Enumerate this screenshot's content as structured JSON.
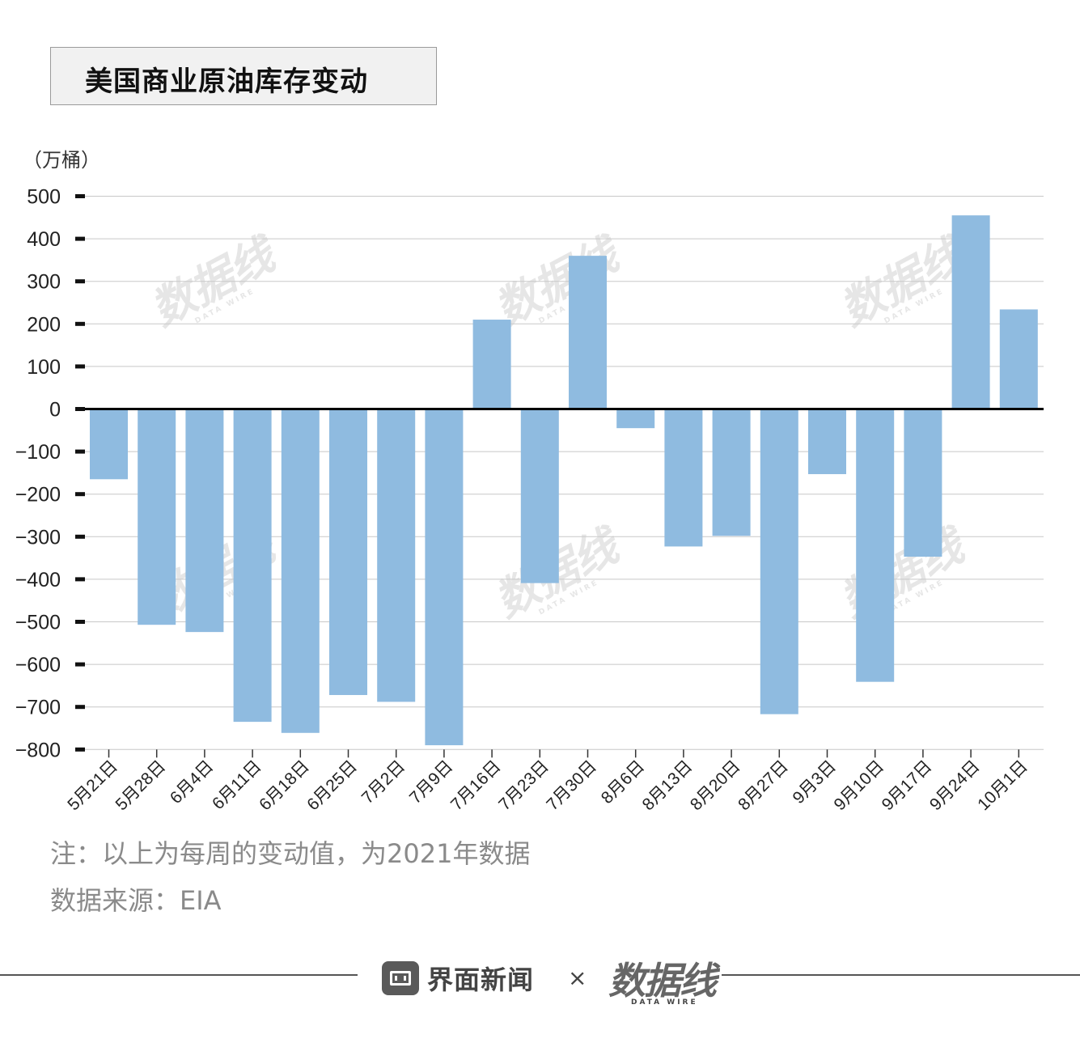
{
  "title": "美国商业原油库存变动",
  "unit_label": "（万桶）",
  "notes": {
    "line1": "注：以上为每周的变动值，为2021年数据",
    "line2": "数据来源：EIA"
  },
  "footer": {
    "brand1": "界面新闻",
    "times": "×",
    "brand2_cn": "数据线",
    "brand2_en": "DATA WIRE"
  },
  "watermark": {
    "cn": "数据线",
    "en": "DATA WIRE"
  },
  "colors": {
    "bar": "#8fbbe0",
    "zero_line": "#000000",
    "grid": "#c8c8c8"
  },
  "chart_data": {
    "type": "bar",
    "title": "美国商业原油库存变动",
    "ylabel": "（万桶）",
    "ylim": [
      -800,
      500
    ],
    "yticks": [
      500,
      400,
      300,
      200,
      100,
      0,
      -100,
      -200,
      -300,
      -400,
      -500,
      -600,
      -700,
      -800
    ],
    "ytick_labels": [
      "500",
      "400",
      "300",
      "200",
      "100",
      "0",
      "−100",
      "−200",
      "−300",
      "−400",
      "−500",
      "−600",
      "−700",
      "−800"
    ],
    "grid": true,
    "categories": [
      "5月21日",
      "5月28日",
      "6月4日",
      "6月11日",
      "6月18日",
      "6月25日",
      "7月2日",
      "7月9日",
      "7月16日",
      "7月23日",
      "7月30日",
      "8月6日",
      "8月13日",
      "8月20日",
      "8月27日",
      "9月3日",
      "9月10日",
      "9月17日",
      "9月24日",
      "10月1日"
    ],
    "values": [
      -165,
      -507,
      -524,
      -735,
      -761,
      -672,
      -688,
      -790,
      210,
      -409,
      360,
      -45,
      -323,
      -298,
      -717,
      -153,
      -641,
      -347,
      455,
      234
    ]
  }
}
